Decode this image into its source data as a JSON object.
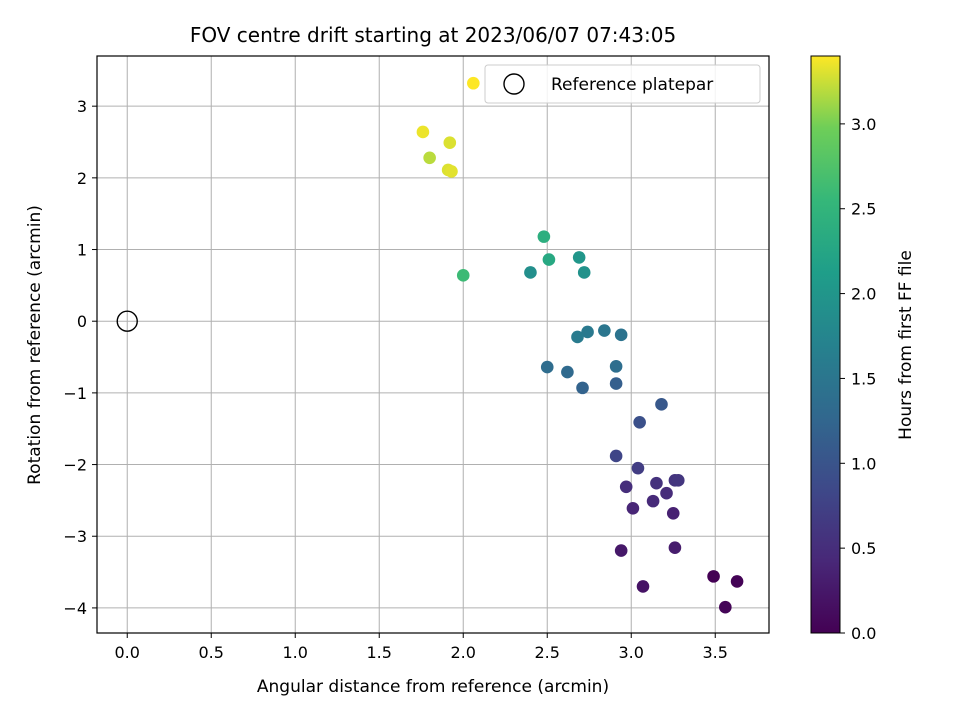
{
  "chart_data": {
    "type": "scatter",
    "title": "FOV centre drift starting at 2023/06/07 07:43:05",
    "xlabel": "Angular distance from reference (arcmin)",
    "ylabel": "Rotation from reference (arcmin)",
    "xlim": [
      -0.18,
      3.82
    ],
    "ylim": [
      -4.35,
      3.7
    ],
    "xticks": [
      0.0,
      0.5,
      1.0,
      1.5,
      2.0,
      2.5,
      3.0,
      3.5
    ],
    "xtick_labels": [
      "0.0",
      "0.5",
      "1.0",
      "1.5",
      "2.0",
      "2.5",
      "3.0",
      "3.5"
    ],
    "yticks": [
      -4,
      -3,
      -2,
      -1,
      0,
      1,
      2,
      3
    ],
    "ytick_labels": [
      "−4",
      "−3",
      "−2",
      "−1",
      "0",
      "1",
      "2",
      "3"
    ],
    "grid": true,
    "legend": {
      "position": "top-right",
      "entries": [
        "Reference platepar"
      ]
    },
    "colorbar": {
      "label": "Hours from first FF file",
      "range": [
        0.0,
        3.4
      ],
      "ticks": [
        0.0,
        0.5,
        1.0,
        1.5,
        2.0,
        2.5,
        3.0
      ],
      "tick_labels": [
        "0.0",
        "0.5",
        "1.0",
        "1.5",
        "2.0",
        "2.5",
        "3.0"
      ],
      "colormap": "viridis"
    },
    "reference_point": {
      "x": 0.0,
      "y": 0.0
    },
    "points": [
      {
        "x": 3.49,
        "y": -3.56,
        "c": 0.0
      },
      {
        "x": 3.63,
        "y": -3.63,
        "c": 0.02
      },
      {
        "x": 3.56,
        "y": -3.99,
        "c": 0.04
      },
      {
        "x": 3.07,
        "y": -3.7,
        "c": 0.2
      },
      {
        "x": 2.94,
        "y": -3.2,
        "c": 0.25
      },
      {
        "x": 3.26,
        "y": -3.16,
        "c": 0.3
      },
      {
        "x": 3.25,
        "y": -2.68,
        "c": 0.35
      },
      {
        "x": 3.01,
        "y": -2.61,
        "c": 0.4
      },
      {
        "x": 3.13,
        "y": -2.51,
        "c": 0.45
      },
      {
        "x": 3.21,
        "y": -2.4,
        "c": 0.48
      },
      {
        "x": 2.97,
        "y": -2.31,
        "c": 0.5
      },
      {
        "x": 3.15,
        "y": -2.26,
        "c": 0.55
      },
      {
        "x": 3.26,
        "y": -2.22,
        "c": 0.58
      },
      {
        "x": 3.28,
        "y": -2.22,
        "c": 0.6
      },
      {
        "x": 3.04,
        "y": -2.05,
        "c": 0.7
      },
      {
        "x": 2.91,
        "y": -1.88,
        "c": 0.8
      },
      {
        "x": 3.05,
        "y": -1.41,
        "c": 0.95
      },
      {
        "x": 3.18,
        "y": -1.16,
        "c": 1.05
      },
      {
        "x": 2.91,
        "y": -0.87,
        "c": 1.15
      },
      {
        "x": 2.71,
        "y": -0.93,
        "c": 1.2
      },
      {
        "x": 2.62,
        "y": -0.71,
        "c": 1.3
      },
      {
        "x": 2.5,
        "y": -0.64,
        "c": 1.35
      },
      {
        "x": 2.91,
        "y": -0.63,
        "c": 1.38
      },
      {
        "x": 2.94,
        "y": -0.19,
        "c": 1.45
      },
      {
        "x": 2.84,
        "y": -0.13,
        "c": 1.5
      },
      {
        "x": 2.74,
        "y": -0.15,
        "c": 1.55
      },
      {
        "x": 2.68,
        "y": -0.22,
        "c": 1.58
      },
      {
        "x": 2.4,
        "y": 0.68,
        "c": 1.9
      },
      {
        "x": 2.72,
        "y": 0.68,
        "c": 1.95
      },
      {
        "x": 2.69,
        "y": 0.89,
        "c": 2.0
      },
      {
        "x": 2.51,
        "y": 0.86,
        "c": 2.3
      },
      {
        "x": 2.48,
        "y": 1.18,
        "c": 2.4
      },
      {
        "x": 2.0,
        "y": 0.64,
        "c": 2.6
      },
      {
        "x": 1.92,
        "y": 2.49,
        "c": 3.3
      },
      {
        "x": 1.91,
        "y": 2.11,
        "c": 3.3
      },
      {
        "x": 1.93,
        "y": 2.09,
        "c": 3.32
      },
      {
        "x": 1.8,
        "y": 2.28,
        "c": 3.2
      },
      {
        "x": 1.76,
        "y": 2.64,
        "c": 3.35
      },
      {
        "x": 2.06,
        "y": 3.32,
        "c": 3.4
      }
    ]
  }
}
